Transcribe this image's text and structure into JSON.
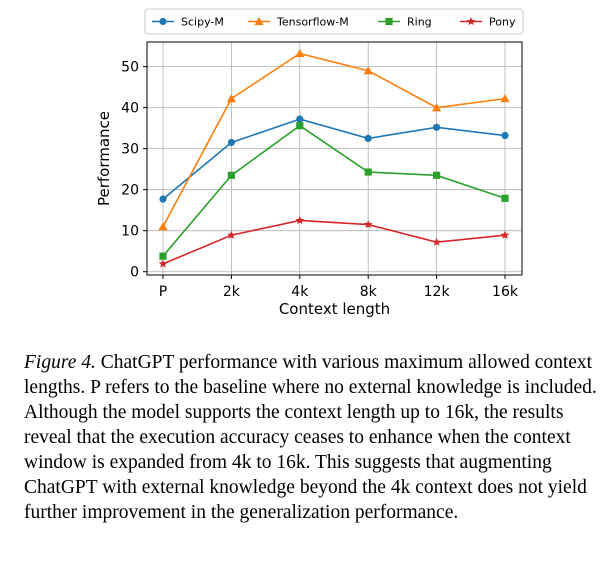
{
  "chart_data": {
    "type": "line",
    "categories": [
      "P",
      "2k",
      "4k",
      "8k",
      "12k",
      "16k"
    ],
    "series": [
      {
        "name": "Scipy-M",
        "color": "#1f77b4",
        "marker": "circle",
        "values": [
          17.7,
          31.5,
          37.2,
          32.5,
          35.2,
          33.2
        ]
      },
      {
        "name": "Tensorflow-M",
        "color": "#ff7f0e",
        "marker": "triangle",
        "values": [
          11.0,
          42.2,
          53.2,
          49.0,
          40.0,
          42.2
        ]
      },
      {
        "name": "Ring",
        "color": "#2ca02c",
        "marker": "square",
        "values": [
          3.8,
          23.5,
          35.6,
          24.3,
          23.5,
          17.9
        ]
      },
      {
        "name": "Pony",
        "color": "#d62728",
        "marker": "star",
        "values": [
          1.9,
          8.9,
          12.5,
          11.5,
          7.2,
          8.9
        ]
      }
    ],
    "yticks": [
      0,
      10,
      20,
      30,
      40,
      50
    ],
    "ylim": [
      -0.8,
      56
    ],
    "xlabel": "Context length",
    "ylabel": "Performance",
    "legend": "top",
    "grid": true
  },
  "caption": {
    "label": "Figure 4.",
    "text": " ChatGPT performance with various maximum allowed context lengths. P refers to the baseline where no external knowledge is included. Although the model supports the context length up to 16k, the results reveal that the execution accuracy ceases to enhance when the context window is expanded from 4k to 16k. This suggests that augmenting ChatGPT with external knowledge beyond the 4k context does not yield further improvement in the generalization performance."
  }
}
